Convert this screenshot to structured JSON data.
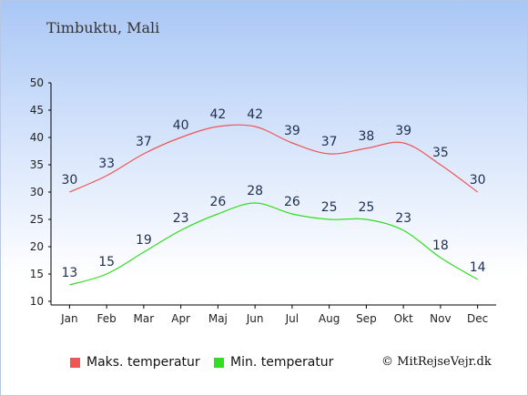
{
  "title": "Timbuktu, Mali",
  "copyright": "© MitRejseVejr.dk",
  "chart_data": {
    "type": "line",
    "categories": [
      "Jan",
      "Feb",
      "Mar",
      "Apr",
      "Maj",
      "Jun",
      "Jul",
      "Aug",
      "Sep",
      "Okt",
      "Nov",
      "Dec"
    ],
    "series": [
      {
        "name": "Maks. temperatur",
        "values": [
          30,
          33,
          37,
          40,
          42,
          42,
          39,
          37,
          38,
          39,
          35,
          30
        ],
        "color": "#ee5555"
      },
      {
        "name": "Min. temperatur",
        "values": [
          13,
          15,
          19,
          23,
          26,
          28,
          26,
          25,
          25,
          23,
          18,
          14
        ],
        "color": "#33dd22"
      }
    ],
    "yticks": [
      10,
      15,
      20,
      25,
      30,
      35,
      40,
      45,
      50
    ],
    "ylim": [
      10,
      50
    ],
    "grid": false,
    "legend": "bottom"
  }
}
